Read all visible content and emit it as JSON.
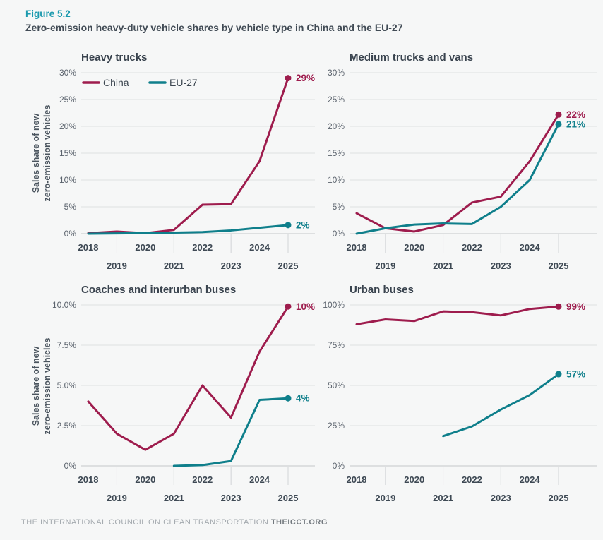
{
  "figure_label": "Figure 5.2",
  "figure_title": "Zero-emission heavy-duty vehicle shares by vehicle type in China and the EU-27",
  "y_axis_label": [
    "Sales share of new",
    "zero-emission vehicles"
  ],
  "footer": {
    "text": "THE INTERNATIONAL COUNCIL ON CLEAN TRANSPORTATION",
    "brand": "THEICCT.ORG"
  },
  "colors": {
    "china": "#9e1c4d",
    "eu27": "#0f7f8b",
    "accent_teal": "#1b9aae"
  },
  "chart_data": [
    {
      "type": "line",
      "title": "Heavy trucks",
      "x": [
        "2018",
        "2019",
        "2020",
        "2021",
        "2022",
        "2023",
        "2024",
        "2025"
      ],
      "ylim": [
        0,
        30
      ],
      "yticks": [
        0,
        5,
        10,
        15,
        20,
        25,
        30
      ],
      "ytick_labels": [
        "0%",
        "5%",
        "10%",
        "15%",
        "20%",
        "25%",
        "30%"
      ],
      "grid": true,
      "show_legend": true,
      "legend_position": "top-left-inside",
      "ylabel": "Sales share of new zero-emission vehicles",
      "series": [
        {
          "name": "China",
          "color": "#9e1c4d",
          "values": [
            0.1,
            0.4,
            0.1,
            0.7,
            5.4,
            5.5,
            13.5,
            29
          ],
          "end_label": "29%"
        },
        {
          "name": "EU-27",
          "color": "#0f7f8b",
          "values": [
            0,
            0.05,
            0.1,
            0.2,
            0.3,
            0.6,
            1.1,
            1.6
          ],
          "end_label": "2%"
        }
      ]
    },
    {
      "type": "line",
      "title": "Medium trucks and vans",
      "x": [
        "2018",
        "2019",
        "2020",
        "2021",
        "2022",
        "2023",
        "2024",
        "2025"
      ],
      "ylim": [
        0,
        30
      ],
      "yticks": [
        0,
        5,
        10,
        15,
        20,
        25,
        30
      ],
      "ytick_labels": [
        "0%",
        "5%",
        "10%",
        "15%",
        "20%",
        "25%",
        "30%"
      ],
      "grid": true,
      "show_legend": false,
      "series": [
        {
          "name": "China",
          "color": "#9e1c4d",
          "values": [
            3.8,
            1.0,
            0.4,
            1.6,
            5.8,
            6.9,
            13.5,
            22.2
          ],
          "end_label": "22%"
        },
        {
          "name": "EU-27",
          "color": "#0f7f8b",
          "values": [
            0,
            1.0,
            1.7,
            1.9,
            1.8,
            5.0,
            10.0,
            20.4
          ],
          "end_label": "21%"
        }
      ]
    },
    {
      "type": "line",
      "title": "Coaches and interurban buses",
      "x": [
        "2018",
        "2019",
        "2020",
        "2021",
        "2022",
        "2023",
        "2024",
        "2025"
      ],
      "ylim": [
        0,
        10
      ],
      "yticks": [
        0,
        2.5,
        5,
        7.5,
        10
      ],
      "ytick_labels": [
        "0%",
        "2.5%",
        "5.0%",
        "7.5%",
        "10.0%"
      ],
      "grid": true,
      "show_legend": false,
      "ylabel": "Sales share of new zero-emission vehicles",
      "series": [
        {
          "name": "China",
          "color": "#9e1c4d",
          "values": [
            4.0,
            2.0,
            1.0,
            2.0,
            5.0,
            3.0,
            7.1,
            9.9
          ],
          "end_label": "10%"
        },
        {
          "name": "EU-27",
          "color": "#0f7f8b",
          "values": [
            null,
            null,
            null,
            0.0,
            0.05,
            0.3,
            4.1,
            4.2
          ],
          "end_label": "4%"
        }
      ]
    },
    {
      "type": "line",
      "title": "Urban buses",
      "x": [
        "2018",
        "2019",
        "2020",
        "2021",
        "2022",
        "2023",
        "2024",
        "2025"
      ],
      "ylim": [
        0,
        100
      ],
      "yticks": [
        0,
        25,
        50,
        75,
        100
      ],
      "ytick_labels": [
        "0%",
        "25%",
        "50%",
        "75%",
        "100%"
      ],
      "grid": true,
      "show_legend": false,
      "series": [
        {
          "name": "China",
          "color": "#9e1c4d",
          "values": [
            88,
            91,
            90,
            96,
            95.5,
            93.5,
            97.5,
            99
          ],
          "end_label": "99%"
        },
        {
          "name": "EU-27",
          "color": "#0f7f8b",
          "values": [
            null,
            null,
            null,
            18.5,
            24.5,
            35,
            44,
            57
          ],
          "end_label": "57%"
        }
      ]
    }
  ]
}
